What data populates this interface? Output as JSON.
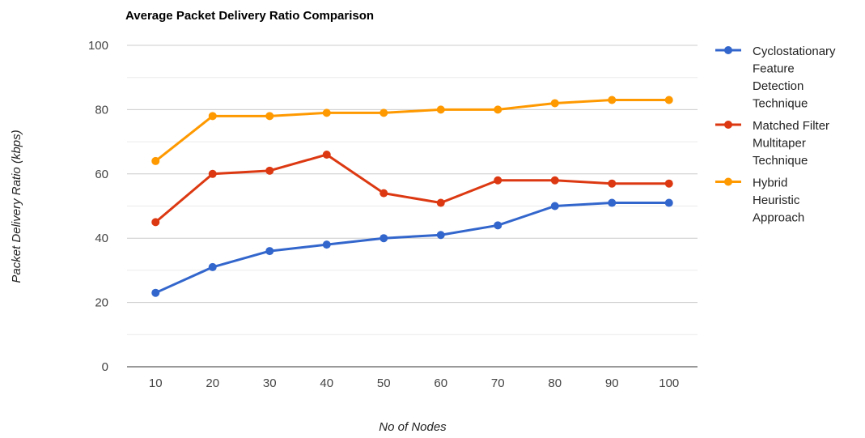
{
  "chart_data": {
    "type": "line",
    "title": "Average Packet Delivery Ratio Comparison",
    "xlabel": "No of Nodes",
    "ylabel": "Packet Delivery Ratio (kbps)",
    "categories": [
      "10",
      "20",
      "30",
      "40",
      "50",
      "60",
      "70",
      "80",
      "90",
      "100"
    ],
    "ylim": [
      0,
      100
    ],
    "yticks": [
      "0",
      "20",
      "40",
      "60",
      "80",
      "100"
    ],
    "grid": true,
    "legend_position": "right",
    "series": [
      {
        "name": "Cyclostationary Feature Detection Technique",
        "legend_lines": [
          "Cyclostationary",
          "Feature",
          "Detection",
          "Technique"
        ],
        "color": "#3366cc",
        "values": [
          23,
          31,
          36,
          38,
          40,
          41,
          44,
          50,
          51,
          51
        ]
      },
      {
        "name": "Matched Filter Multitaper Technique",
        "legend_lines": [
          "Matched Filter",
          "Multitaper",
          "Technique"
        ],
        "color": "#dc3912",
        "values": [
          45,
          60,
          61,
          66,
          54,
          51,
          58,
          58,
          57,
          57
        ]
      },
      {
        "name": "Hybrid Heuristic Approach",
        "legend_lines": [
          "Hybrid",
          "Heuristic",
          "Approach"
        ],
        "color": "#ff9900",
        "values": [
          64,
          78,
          78,
          79,
          79,
          80,
          80,
          82,
          83,
          83
        ]
      }
    ]
  }
}
